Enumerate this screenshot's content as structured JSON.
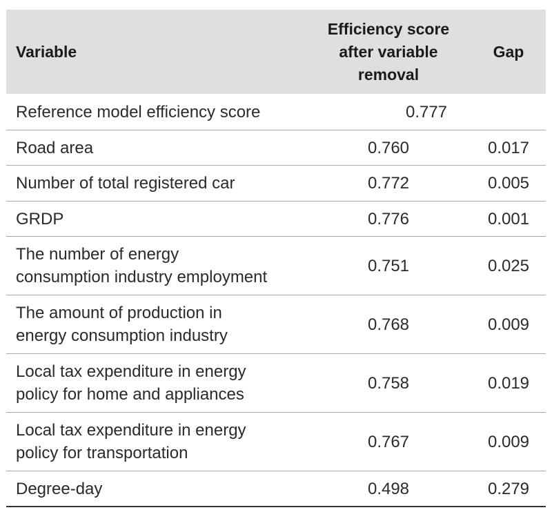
{
  "header": {
    "variable": "Variable",
    "efficiency_lines": [
      "Efficiency score",
      "after variable",
      "removal"
    ],
    "gap": "Gap"
  },
  "reference": {
    "label": "Reference model efficiency score",
    "value": "0.777"
  },
  "rows": [
    {
      "lines": [
        "Road area"
      ],
      "score": "0.760",
      "gap": "0.017"
    },
    {
      "lines": [
        "Number of total registered car"
      ],
      "score": "0.772",
      "gap": "0.005"
    },
    {
      "lines": [
        "GRDP"
      ],
      "score": "0.776",
      "gap": "0.001"
    },
    {
      "lines": [
        "The number of energy",
        "consumption industry employment"
      ],
      "score": "0.751",
      "gap": "0.025"
    },
    {
      "lines": [
        "The amount of production in",
        "energy consumption industry"
      ],
      "score": "0.768",
      "gap": "0.009"
    },
    {
      "lines": [
        "Local tax expenditure in energy",
        "policy for home and appliances"
      ],
      "score": "0.758",
      "gap": "0.019"
    },
    {
      "lines": [
        "Local tax expenditure in energy",
        "policy for transportation"
      ],
      "score": "0.767",
      "gap": "0.009"
    },
    {
      "lines": [
        "Degree-day"
      ],
      "score": "0.498",
      "gap": "0.279"
    }
  ]
}
